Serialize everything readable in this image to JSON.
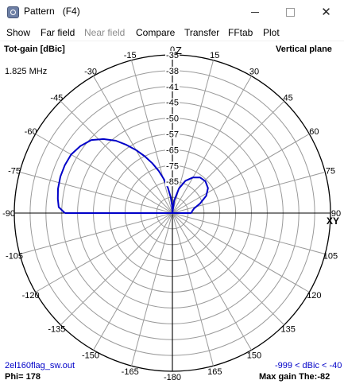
{
  "window": {
    "title": "Pattern   (F4)",
    "close_glyph": "✕"
  },
  "menu": [
    {
      "label": "Show",
      "enabled": true
    },
    {
      "label": "Far field",
      "enabled": true
    },
    {
      "label": "Near field",
      "enabled": false
    },
    {
      "label": "Compare",
      "enabled": true
    },
    {
      "label": "Transfer",
      "enabled": true
    },
    {
      "label": "FFtab",
      "enabled": true
    },
    {
      "label": "Plot",
      "enabled": true
    }
  ],
  "plot": {
    "gain_label": "Tot-gain [dBic]",
    "plane_label": "Vertical plane",
    "frequency": "1.825 MHz",
    "axis_z": "Z",
    "axis_xy": "XY",
    "file_name": "2el160flag_sw.out",
    "range_text": "-999 < dBic < -40",
    "phi_text": "Phi= 178",
    "max_gain_text": "Max gain The:-82",
    "pattern_color": "#0000c8"
  },
  "chart_data": {
    "type": "polar",
    "angle_ticks": [
      {
        "angle": 0,
        "label": "0"
      },
      {
        "angle": 15,
        "label": "15"
      },
      {
        "angle": 30,
        "label": "30"
      },
      {
        "angle": 45,
        "label": "45"
      },
      {
        "angle": 60,
        "label": "60"
      },
      {
        "angle": 75,
        "label": "75"
      },
      {
        "angle": 90,
        "label": "90"
      },
      {
        "angle": 105,
        "label": "105"
      },
      {
        "angle": 120,
        "label": "120"
      },
      {
        "angle": 135,
        "label": "135"
      },
      {
        "angle": 150,
        "label": "150"
      },
      {
        "angle": 165,
        "label": "165"
      },
      {
        "angle": 180,
        "label": "-180"
      },
      {
        "angle": -15,
        "label": "-15"
      },
      {
        "angle": -30,
        "label": "-30"
      },
      {
        "angle": -45,
        "label": "-45"
      },
      {
        "angle": -60,
        "label": "-60"
      },
      {
        "angle": -75,
        "label": "-75"
      },
      {
        "angle": -90,
        "label": "-90"
      },
      {
        "angle": -105,
        "label": "-105"
      },
      {
        "angle": -120,
        "label": "-120"
      },
      {
        "angle": -135,
        "label": "-135"
      },
      {
        "angle": -150,
        "label": "-150"
      },
      {
        "angle": -165,
        "label": "-165"
      }
    ],
    "radial_ticks": [
      "-35",
      "-38",
      "-41",
      "-45",
      "-50",
      "-57",
      "-65",
      "-75",
      "-85"
    ],
    "rings": [
      1,
      0.9,
      0.8,
      0.7,
      0.6,
      0.5,
      0.4,
      0.3,
      0.2,
      0.1
    ],
    "series": [
      {
        "points": [
          {
            "theta": -90,
            "r": 0.68
          },
          {
            "theta": -87,
            "r": 0.72
          },
          {
            "theta": -83,
            "r": 0.73
          },
          {
            "theta": -78,
            "r": 0.74
          },
          {
            "theta": -72,
            "r": 0.745
          },
          {
            "theta": -66,
            "r": 0.745
          },
          {
            "theta": -60,
            "r": 0.74
          },
          {
            "theta": -54,
            "r": 0.72
          },
          {
            "theta": -48,
            "r": 0.69
          },
          {
            "theta": -43,
            "r": 0.64
          },
          {
            "theta": -38,
            "r": 0.58
          },
          {
            "theta": -34,
            "r": 0.52
          },
          {
            "theta": -30,
            "r": 0.46
          },
          {
            "theta": -26,
            "r": 0.4
          },
          {
            "theta": -22,
            "r": 0.34
          },
          {
            "theta": -18,
            "r": 0.28
          },
          {
            "theta": -14,
            "r": 0.22
          },
          {
            "theta": -10,
            "r": 0.16
          },
          {
            "theta": -6,
            "r": 0.1
          },
          {
            "theta": -3,
            "r": 0.05
          },
          {
            "theta": 0,
            "r": 0.0
          },
          {
            "theta": 8,
            "r": 0.08
          },
          {
            "theta": 15,
            "r": 0.16
          },
          {
            "theta": 22,
            "r": 0.22
          },
          {
            "theta": 30,
            "r": 0.26
          },
          {
            "theta": 38,
            "r": 0.285
          },
          {
            "theta": 46,
            "r": 0.29
          },
          {
            "theta": 55,
            "r": 0.275
          },
          {
            "theta": 63,
            "r": 0.24
          },
          {
            "theta": 71,
            "r": 0.185
          },
          {
            "theta": 78,
            "r": 0.14
          },
          {
            "theta": 85,
            "r": 0.125
          },
          {
            "theta": 90,
            "r": 0.12
          }
        ]
      }
    ]
  }
}
